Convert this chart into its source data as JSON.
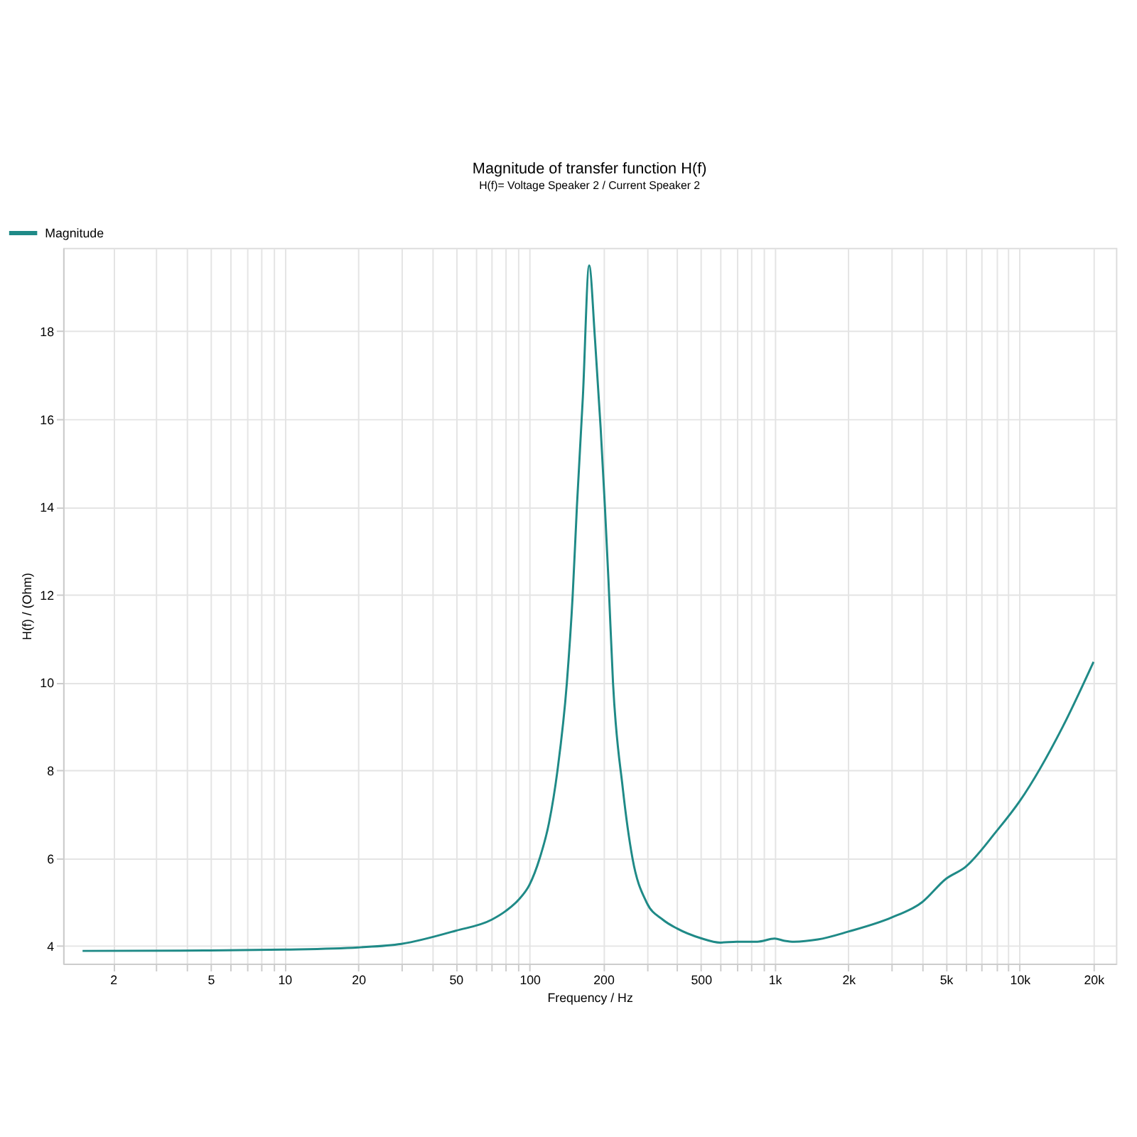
{
  "chart_data": {
    "type": "line",
    "title": "Magnitude of transfer function H(f)",
    "subtitle": "H(f)= Voltage Speaker 2 / Current Speaker 2",
    "xlabel": "Frequency / Hz",
    "ylabel": "H(f) / (Ohm)",
    "log": "x",
    "grid": true,
    "legend": "top left",
    "line_style": "solid",
    "marker": "none",
    "xlim": [
      1.25,
      24700
    ],
    "ylim": [
      3.6,
      19.9
    ],
    "xticks": [
      {
        "value": 2,
        "label": "2"
      },
      {
        "value": 3,
        "label": null
      },
      {
        "value": 4,
        "label": null
      },
      {
        "value": 5,
        "label": "5"
      },
      {
        "value": 6,
        "label": null
      },
      {
        "value": 7,
        "label": null
      },
      {
        "value": 8,
        "label": null
      },
      {
        "value": 9,
        "label": null
      },
      {
        "value": 10,
        "label": "10"
      },
      {
        "value": 20,
        "label": "20"
      },
      {
        "value": 30,
        "label": null
      },
      {
        "value": 40,
        "label": null
      },
      {
        "value": 50,
        "label": "50"
      },
      {
        "value": 60,
        "label": null
      },
      {
        "value": 70,
        "label": null
      },
      {
        "value": 80,
        "label": null
      },
      {
        "value": 90,
        "label": null
      },
      {
        "value": 100,
        "label": "100"
      },
      {
        "value": 200,
        "label": "200"
      },
      {
        "value": 300,
        "label": null
      },
      {
        "value": 400,
        "label": null
      },
      {
        "value": 500,
        "label": "500"
      },
      {
        "value": 600,
        "label": null
      },
      {
        "value": 700,
        "label": null
      },
      {
        "value": 800,
        "label": null
      },
      {
        "value": 900,
        "label": null
      },
      {
        "value": 1000,
        "label": "1k"
      },
      {
        "value": 2000,
        "label": "2k"
      },
      {
        "value": 3000,
        "label": null
      },
      {
        "value": 4000,
        "label": null
      },
      {
        "value": 5000,
        "label": "5k"
      },
      {
        "value": 6000,
        "label": null
      },
      {
        "value": 7000,
        "label": null
      },
      {
        "value": 8000,
        "label": null
      },
      {
        "value": 9000,
        "label": null
      },
      {
        "value": 10000,
        "label": "10k"
      },
      {
        "value": 20000,
        "label": "20k"
      }
    ],
    "yticks": [
      4,
      6,
      8,
      10,
      12,
      14,
      16,
      18
    ],
    "series": [
      {
        "name": "Magnitude",
        "color": "#1f8a87",
        "x": [
          1.5,
          5,
          10,
          20,
          30,
          50,
          70,
          80,
          90,
          100,
          110,
          120,
          130,
          142,
          150,
          156,
          165,
          175,
          185,
          195,
          203,
          210,
          219,
          240,
          263,
          300,
          350,
          400,
          500,
          600,
          700,
          850,
          1000,
          1100,
          1200,
          1500,
          2000,
          3000,
          4000,
          5000,
          6000,
          8000,
          10000,
          15000,
          20000
        ],
        "values": [
          3.89,
          3.9,
          3.92,
          3.97,
          4.05,
          4.35,
          4.6,
          4.8,
          5.05,
          5.4,
          6.0,
          6.8,
          8.0,
          10.0,
          12.0,
          14.0,
          16.5,
          19.5,
          17.8,
          15.8,
          14.0,
          12.3,
          10.0,
          7.6,
          6.0,
          5.0,
          4.6,
          4.4,
          4.18,
          4.08,
          4.1,
          4.1,
          4.17,
          4.12,
          4.1,
          4.15,
          4.33,
          4.65,
          5.0,
          5.53,
          5.8,
          6.6,
          7.3,
          9.0,
          10.47
        ]
      }
    ]
  }
}
